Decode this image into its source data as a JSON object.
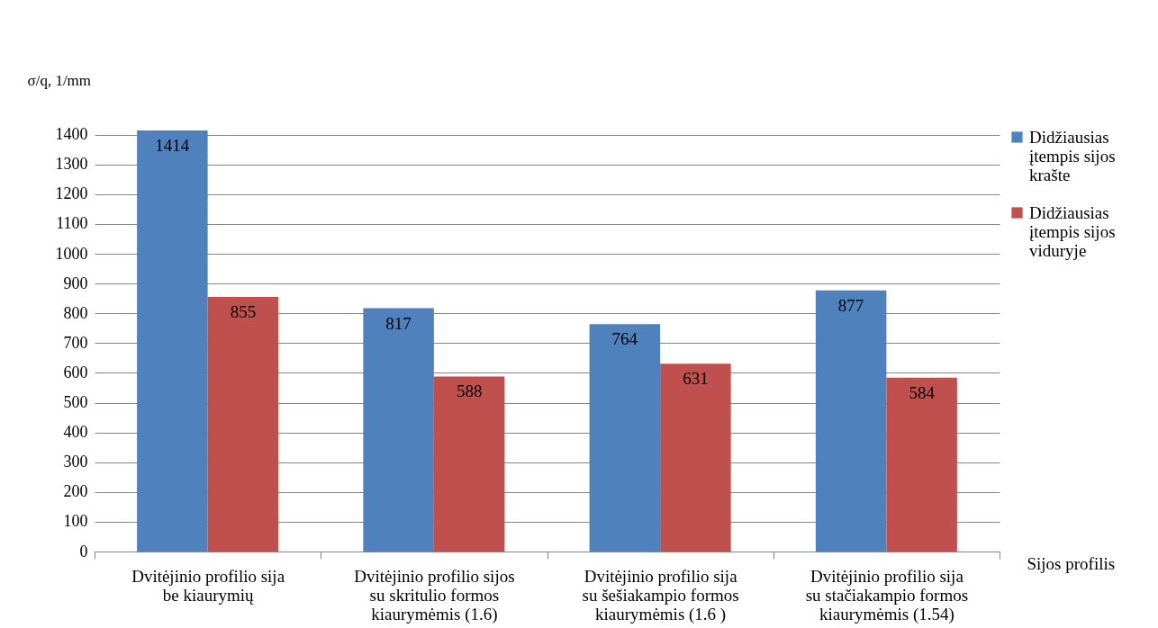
{
  "chart_data": {
    "type": "bar",
    "ylabel": "σ/q, 1/mm",
    "xlabel": "Sijos profilis",
    "categories": [
      "Dvitėjinio profilio sija be kiaurymių",
      "Dvitėjinio profilio sijos su skritulio formos kiaurymėmis  (1.6)",
      "Dvitėjinio profilio sija su šešiakampio formos kiaurymėmis  (1.6 )",
      "Dvitėjinio profilio sija su stačiakampio formos kiaurymėmis (1.54)"
    ],
    "series": [
      {
        "name": "Didžiausias įtempis sijos krašte",
        "color": "#4f81bd",
        "values": [
          1414,
          817,
          764,
          877
        ]
      },
      {
        "name": "Didžiausias įtempis sijos viduryje",
        "color": "#c0504d",
        "values": [
          855,
          588,
          631,
          584
        ]
      }
    ],
    "ylim": [
      0,
      1420
    ],
    "yticks": [
      0,
      100,
      200,
      300,
      400,
      500,
      600,
      700,
      800,
      900,
      1000,
      1100,
      1200,
      1300,
      1400
    ],
    "grid": "y",
    "legend": "right",
    "data_labels": true
  }
}
